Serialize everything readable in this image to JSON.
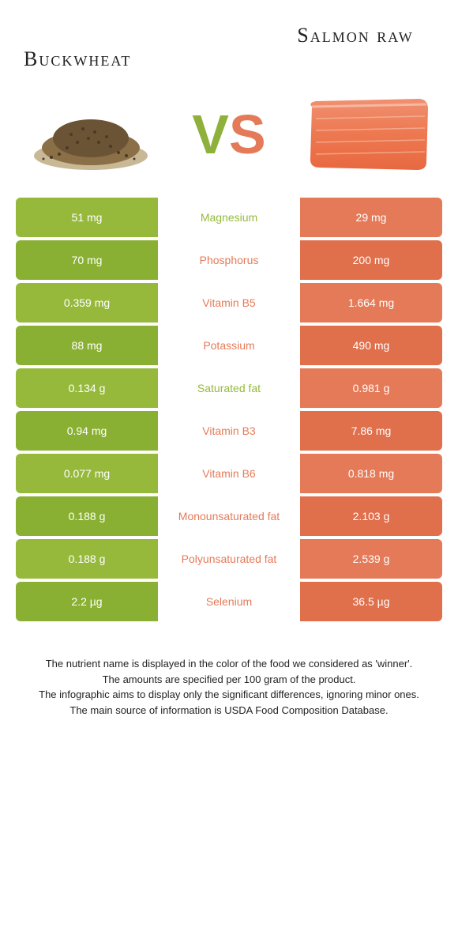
{
  "colors": {
    "left_food": "#96b93c",
    "right_food": "#e57a58",
    "left_food_dark": "#8ab033",
    "right_food_dark": "#e06f4c",
    "text_dark": "#222222"
  },
  "header": {
    "left_title": "Buckwheat",
    "right_title": "Salmon raw",
    "vs_v": "V",
    "vs_s": "S"
  },
  "rows": [
    {
      "left": "51 mg",
      "label": "Magnesium",
      "right": "29 mg",
      "winner": "left"
    },
    {
      "left": "70 mg",
      "label": "Phosphorus",
      "right": "200 mg",
      "winner": "right"
    },
    {
      "left": "0.359 mg",
      "label": "Vitamin B5",
      "right": "1.664 mg",
      "winner": "right"
    },
    {
      "left": "88 mg",
      "label": "Potassium",
      "right": "490 mg",
      "winner": "right"
    },
    {
      "left": "0.134 g",
      "label": "Saturated fat",
      "right": "0.981 g",
      "winner": "left"
    },
    {
      "left": "0.94 mg",
      "label": "Vitamin B3",
      "right": "7.86 mg",
      "winner": "right"
    },
    {
      "left": "0.077 mg",
      "label": "Vitamin B6",
      "right": "0.818 mg",
      "winner": "right"
    },
    {
      "left": "0.188 g",
      "label": "Monounsaturated fat",
      "right": "2.103 g",
      "winner": "right"
    },
    {
      "left": "0.188 g",
      "label": "Polyunsaturated fat",
      "right": "2.539 g",
      "winner": "right"
    },
    {
      "left": "2.2 µg",
      "label": "Selenium",
      "right": "36.5 µg",
      "winner": "right"
    }
  ],
  "footer": {
    "line1": "The nutrient name is displayed in the color of the food we considered as 'winner'.",
    "line2": "The amounts are specified per 100 gram of the product.",
    "line3": "The infographic aims to display only the significant differences, ignoring minor ones.",
    "line4": "The main source of information is USDA Food Composition Database."
  }
}
